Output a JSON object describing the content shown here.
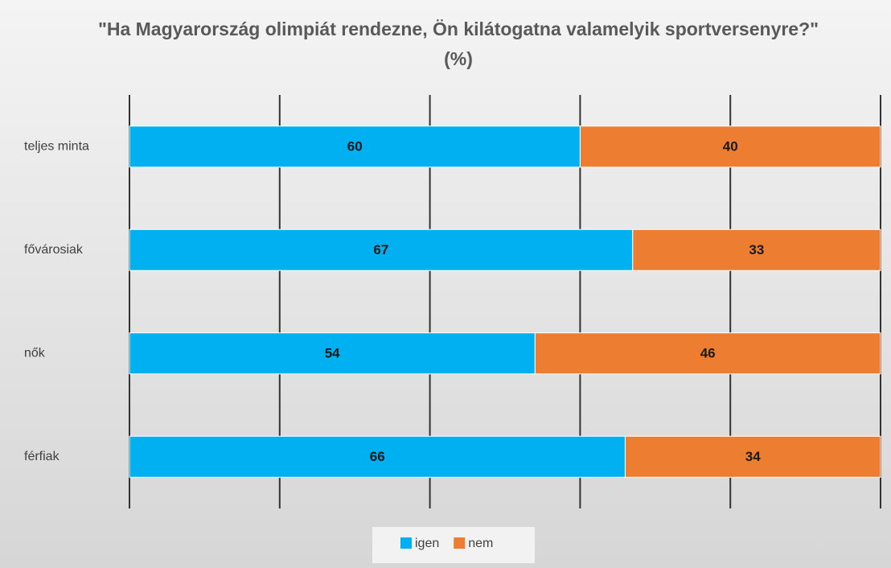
{
  "chart_data": {
    "type": "stacked_bar_horizontal",
    "title": "\"Ha Magyarország olimpiát rendezne, Ön kilátogatna valamelyik sportversenyre?\" (%)",
    "categories": [
      "teljes minta",
      "fővárosiak",
      "nők",
      "férfiak"
    ],
    "series": [
      {
        "name": "igen",
        "color": "#00b0f0",
        "values": [
          60,
          67,
          54,
          66
        ]
      },
      {
        "name": "nem",
        "color": "#ed7d31",
        "values": [
          40,
          33,
          46,
          34
        ]
      }
    ],
    "xlim": [
      0,
      100
    ],
    "xticks": [
      0,
      20,
      40,
      60,
      80,
      100
    ],
    "grid": true,
    "legend": "bottom"
  }
}
